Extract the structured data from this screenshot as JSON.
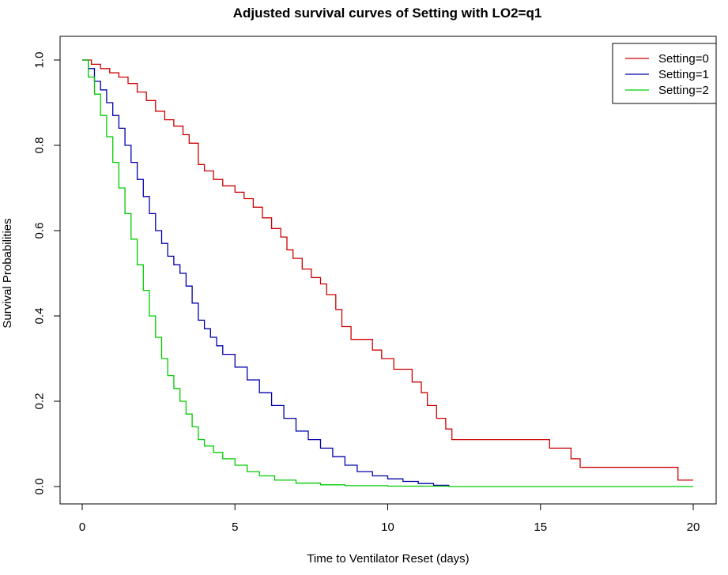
{
  "chart_data": {
    "type": "line",
    "step": true,
    "title": "Adjusted survival curves of Setting with LO2=q1",
    "xlabel": "Time to Ventilator Reset (days)",
    "ylabel": "Survival Probabilities",
    "xlim": [
      0,
      20
    ],
    "ylim": [
      0,
      1
    ],
    "x_ticks": [
      0,
      5,
      10,
      15,
      20
    ],
    "x_tick_labels": [
      "0",
      "5",
      "10",
      "15",
      "20"
    ],
    "y_ticks": [
      0,
      0.2,
      0.4,
      0.6,
      0.8,
      1.0
    ],
    "y_tick_labels": [
      "0.0",
      "0.2",
      "0.4",
      "0.6",
      "0.8",
      "1.0"
    ],
    "grid": false,
    "legend_position": "top-right",
    "series": [
      {
        "name": "Setting=0",
        "color": "#cc0000",
        "x": [
          0,
          0.3,
          0.6,
          0.9,
          1.2,
          1.5,
          1.8,
          2.1,
          2.4,
          2.7,
          3.0,
          3.3,
          3.5,
          3.8,
          4.0,
          4.3,
          4.6,
          5.0,
          5.3,
          5.6,
          5.9,
          6.2,
          6.5,
          6.7,
          6.9,
          7.2,
          7.5,
          7.8,
          8.0,
          8.3,
          8.5,
          8.8,
          9.0,
          9.5,
          9.8,
          10.2,
          10.8,
          11.1,
          11.3,
          11.6,
          11.9,
          12.1,
          12.5,
          15.0,
          15.3,
          16.0,
          16.3,
          19.2,
          19.5,
          20.0
        ],
        "y": [
          1.0,
          0.99,
          0.98,
          0.97,
          0.96,
          0.945,
          0.925,
          0.905,
          0.88,
          0.86,
          0.845,
          0.825,
          0.805,
          0.755,
          0.74,
          0.72,
          0.705,
          0.69,
          0.675,
          0.655,
          0.63,
          0.605,
          0.585,
          0.555,
          0.535,
          0.51,
          0.49,
          0.475,
          0.45,
          0.415,
          0.375,
          0.345,
          0.345,
          0.32,
          0.3,
          0.275,
          0.245,
          0.22,
          0.19,
          0.16,
          0.135,
          0.11,
          0.11,
          0.11,
          0.09,
          0.065,
          0.045,
          0.045,
          0.015,
          0.015
        ]
      },
      {
        "name": "Setting=1",
        "color": "#0000aa",
        "x": [
          0,
          0.2,
          0.4,
          0.6,
          0.8,
          1.0,
          1.2,
          1.4,
          1.6,
          1.8,
          2.0,
          2.2,
          2.4,
          2.6,
          2.8,
          3.0,
          3.2,
          3.4,
          3.6,
          3.8,
          4.0,
          4.2,
          4.4,
          4.6,
          5.0,
          5.4,
          5.8,
          6.2,
          6.6,
          7.0,
          7.4,
          7.8,
          8.2,
          8.6,
          9.0,
          9.5,
          10.0,
          10.5,
          11.0,
          11.5,
          12.0
        ],
        "y": [
          1.0,
          0.98,
          0.95,
          0.93,
          0.9,
          0.87,
          0.84,
          0.8,
          0.76,
          0.72,
          0.68,
          0.64,
          0.6,
          0.57,
          0.54,
          0.52,
          0.5,
          0.47,
          0.43,
          0.39,
          0.37,
          0.35,
          0.33,
          0.31,
          0.28,
          0.25,
          0.22,
          0.19,
          0.16,
          0.13,
          0.11,
          0.09,
          0.07,
          0.05,
          0.035,
          0.025,
          0.018,
          0.012,
          0.007,
          0.003,
          0.0
        ]
      },
      {
        "name": "Setting=2",
        "color": "#00cc00",
        "x": [
          0,
          0.2,
          0.4,
          0.6,
          0.8,
          1.0,
          1.2,
          1.4,
          1.6,
          1.8,
          2.0,
          2.2,
          2.4,
          2.6,
          2.8,
          3.0,
          3.2,
          3.4,
          3.6,
          3.8,
          4.0,
          4.3,
          4.6,
          5.0,
          5.4,
          5.8,
          6.3,
          7.0,
          7.8,
          8.6,
          10.0,
          12.0,
          20.0
        ],
        "y": [
          1.0,
          0.96,
          0.92,
          0.87,
          0.82,
          0.76,
          0.7,
          0.64,
          0.58,
          0.52,
          0.46,
          0.4,
          0.35,
          0.3,
          0.26,
          0.23,
          0.2,
          0.17,
          0.14,
          0.11,
          0.095,
          0.08,
          0.065,
          0.05,
          0.035,
          0.025,
          0.015,
          0.008,
          0.004,
          0.002,
          0.001,
          0.0,
          0.0
        ]
      }
    ]
  }
}
